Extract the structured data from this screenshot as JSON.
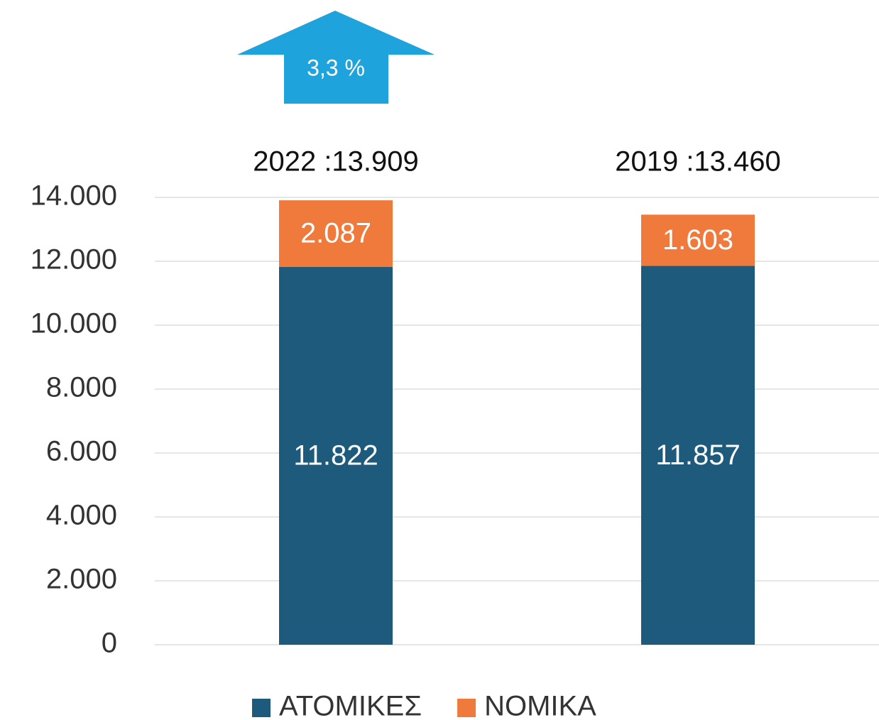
{
  "chart_data": {
    "type": "stacked_bar",
    "annotation": "3,3 %",
    "categories": [
      "2022 :13.909",
      "2019 :13.460"
    ],
    "series": [
      {
        "name": "ΑΤΟΜΙΚΕΣ",
        "color": "#1d5a7c",
        "values": [
          11822,
          11857
        ],
        "value_labels": [
          "11.822",
          "11.857"
        ]
      },
      {
        "name": "ΝΟΜΙΚΑ",
        "color": "#ef7a3c",
        "values": [
          2087,
          1603
        ],
        "value_labels": [
          "2.087",
          "1.603"
        ]
      }
    ],
    "ylim": [
      0,
      14000
    ],
    "yticks": [
      0,
      {
        "value": 2000,
        "label": "2.000"
      },
      {
        "value": 4000,
        "label": "4.000"
      },
      {
        "value": 6000,
        "label": "6.000"
      },
      {
        "value": 8000,
        "label": "8.000"
      },
      {
        "value": 10000,
        "label": "10.000"
      },
      {
        "value": 12000,
        "label": "12.000"
      },
      {
        "value": 14000,
        "label": "14.000"
      }
    ],
    "grid": true,
    "legend": "bottom"
  }
}
